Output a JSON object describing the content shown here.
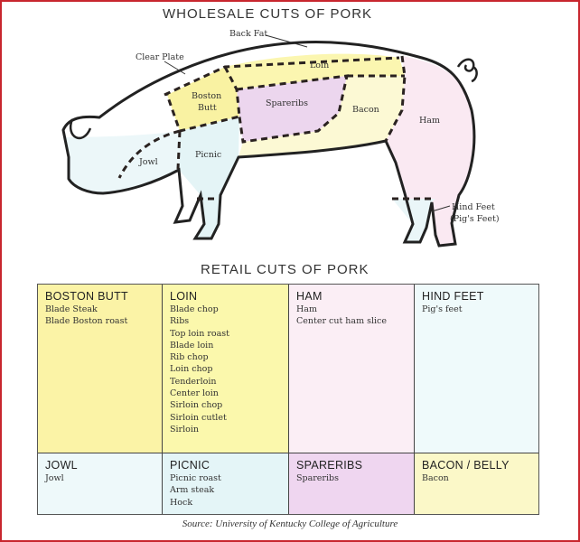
{
  "wholesale": {
    "title": "WHOLESALE CUTS OF PORK",
    "labels": {
      "back_fat": "Back Fat",
      "clear_plate": "Clear Plate",
      "loin": "Loin",
      "boston_butt_1": "Boston",
      "boston_butt_2": "Butt",
      "spareribs": "Spareribs",
      "bacon": "Bacon",
      "ham": "Ham",
      "jowl": "Jowl",
      "picnic": "Picnic",
      "hind_feet_1": "Hind Feet",
      "hind_feet_2": "(Pig's Feet)"
    },
    "colors": {
      "boston_butt": "#f9f2a2",
      "loin": "#fbf6b0",
      "bacon": "#fcf9d4",
      "spareribs": "#ecd6ee",
      "ham": "#fae9f2",
      "picnic": "#e4f4f6",
      "jowl": "#ecf7f9",
      "hind_feet": "#eaf6f8"
    }
  },
  "retail": {
    "title": "RETAIL CUTS OF PORK",
    "cells": [
      {
        "heading": "BOSTON BUTT",
        "items": [
          "Blade Steak",
          "Blade Boston roast"
        ],
        "color": "#fbf3a6"
      },
      {
        "heading": "LOIN",
        "items": [
          "Blade chop",
          "Ribs",
          "Top loin roast",
          "Blade loin",
          "Rib chop",
          "Loin chop",
          "Tenderloin",
          "Center loin",
          "Sirloin chop",
          "Sirloin cutlet",
          "Sirloin"
        ],
        "color": "#fbf8ac"
      },
      {
        "heading": "HAM",
        "items": [
          "Ham",
          "Center cut ham slice"
        ],
        "color": "#fbeef5"
      },
      {
        "heading": "HIND FEET",
        "items": [
          "Pig's feet"
        ],
        "color": "#effafb"
      },
      {
        "heading": "JOWL",
        "items": [
          "Jowl"
        ],
        "color": "#eef9fa"
      },
      {
        "heading": "PICNIC",
        "items": [
          "Picnic roast",
          "Arm steak",
          "Hock"
        ],
        "color": "#e4f5f7"
      },
      {
        "heading": "SPARERIBS",
        "items": [
          "Spareribs"
        ],
        "color": "#efd6f0"
      },
      {
        "heading": "BACON / BELLY",
        "items": [
          "Bacon"
        ],
        "color": "#fbf8c8"
      }
    ]
  },
  "source": "Source: University of Kentucky College of Agriculture"
}
